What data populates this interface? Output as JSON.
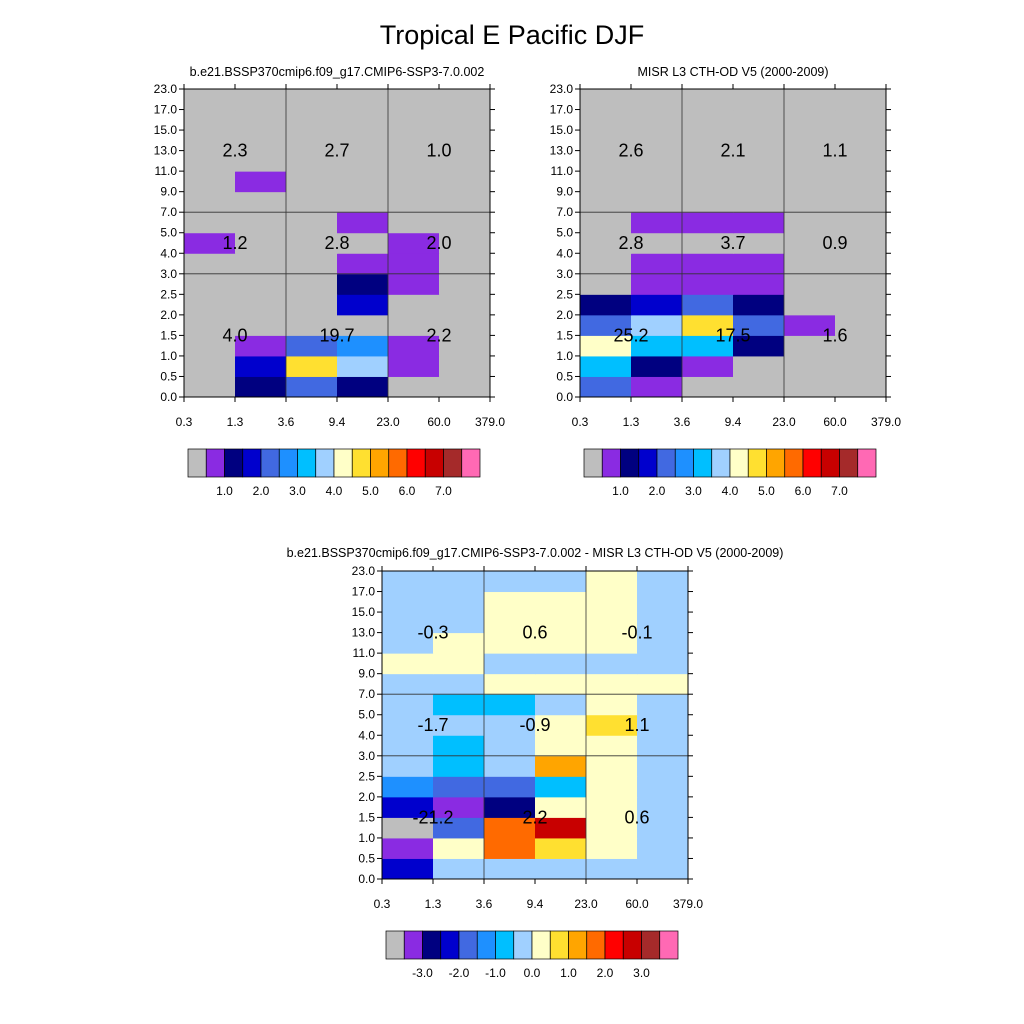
{
  "figure_title": "Tropical E Pacific DJF",
  "colors": {
    "gray": "#bebebe",
    "c1": "#8a2be2",
    "c2": "#000080",
    "c3": "#0000cd",
    "c4": "#4169e1",
    "c5": "#1e90ff",
    "c6": "#00bfff",
    "c7": "#a0d0ff",
    "c8": "#ffffc8",
    "c9": "#ffe030",
    "c10": "#ffa500",
    "c11": "#ff6a00",
    "c12": "#ff0000",
    "c13": "#c80000",
    "c14": "#a52a2a",
    "c15": "#ff69b4"
  },
  "palette_keys": [
    "gray",
    "c1",
    "c2",
    "c3",
    "c4",
    "c5",
    "c6",
    "c7",
    "c8",
    "c9",
    "c10",
    "c11",
    "c12",
    "c13",
    "c14",
    "c15"
  ],
  "chart_data": [
    {
      "type": "heatmap",
      "title": "b.e21.BSSP370cmip6.f09_g17.CMIP6-SSP3-7.0.002",
      "x_ticks": [
        "0.3",
        "1.3",
        "3.6",
        "9.4",
        "23.0",
        "60.0",
        "379.0"
      ],
      "y_ticks": [
        "0.0",
        "0.5",
        "1.0",
        "1.5",
        "2.0",
        "2.5",
        "3.0",
        "4.0",
        "5.0",
        "7.0",
        "9.0",
        "11.0",
        "13.0",
        "15.0",
        "17.0",
        "23.0"
      ],
      "cells": [
        [
          "gray",
          "c2",
          "c4",
          "c2",
          "gray",
          "gray"
        ],
        [
          "gray",
          "c3",
          "c9",
          "c7",
          "c1",
          "gray"
        ],
        [
          "gray",
          "c1",
          "c4",
          "c5",
          "c1",
          "gray"
        ],
        [
          "gray",
          "gray",
          "gray",
          "gray",
          "gray",
          "gray"
        ],
        [
          "gray",
          "gray",
          "gray",
          "c3",
          "gray",
          "gray"
        ],
        [
          "gray",
          "gray",
          "gray",
          "c2",
          "c1",
          "gray"
        ],
        [
          "gray",
          "gray",
          "gray",
          "c1",
          "c1",
          "gray"
        ],
        [
          "c1",
          "gray",
          "gray",
          "gray",
          "c1",
          "gray"
        ],
        [
          "gray",
          "gray",
          "gray",
          "c1",
          "gray",
          "gray"
        ],
        [
          "gray",
          "gray",
          "gray",
          "gray",
          "gray",
          "gray"
        ],
        [
          "gray",
          "c1",
          "gray",
          "gray",
          "gray",
          "gray"
        ],
        [
          "gray",
          "gray",
          "gray",
          "gray",
          "gray",
          "gray"
        ],
        [
          "gray",
          "gray",
          "gray",
          "gray",
          "gray",
          "gray"
        ],
        [
          "gray",
          "gray",
          "gray",
          "gray",
          "gray",
          "gray"
        ],
        [
          "gray",
          "gray",
          "gray",
          "gray",
          "gray",
          "gray"
        ]
      ],
      "box_labels": [
        {
          "row": "low",
          "col": "left",
          "value": "4.0"
        },
        {
          "row": "low",
          "col": "mid",
          "value": "19.7"
        },
        {
          "row": "low",
          "col": "right",
          "value": "2.2"
        },
        {
          "row": "mid",
          "col": "left",
          "value": "1.2"
        },
        {
          "row": "mid",
          "col": "mid",
          "value": "2.8"
        },
        {
          "row": "mid",
          "col": "right",
          "value": "2.0"
        },
        {
          "row": "high",
          "col": "left",
          "value": "2.3"
        },
        {
          "row": "high",
          "col": "mid",
          "value": "2.7"
        },
        {
          "row": "high",
          "col": "right",
          "value": "1.0"
        }
      ],
      "colorbar_labels": [
        "1.0",
        "2.0",
        "3.0",
        "4.0",
        "5.0",
        "6.0",
        "7.0"
      ]
    },
    {
      "type": "heatmap",
      "title": "MISR L3 CTH-OD V5 (2000-2009)",
      "x_ticks": [
        "0.3",
        "1.3",
        "3.6",
        "9.4",
        "23.0",
        "60.0",
        "379.0"
      ],
      "y_ticks": [
        "0.0",
        "0.5",
        "1.0",
        "1.5",
        "2.0",
        "2.5",
        "3.0",
        "4.0",
        "5.0",
        "7.0",
        "9.0",
        "11.0",
        "13.0",
        "15.0",
        "17.0",
        "23.0"
      ],
      "cells": [
        [
          "c4",
          "c1",
          "gray",
          "gray",
          "gray",
          "gray"
        ],
        [
          "c6",
          "c2",
          "c1",
          "gray",
          "gray",
          "gray"
        ],
        [
          "c8",
          "c6",
          "c6",
          "c2",
          "gray",
          "gray"
        ],
        [
          "c4",
          "c7",
          "c9",
          "c4",
          "c1",
          "gray"
        ],
        [
          "c2",
          "c3",
          "c4",
          "c2",
          "gray",
          "gray"
        ],
        [
          "gray",
          "c1",
          "c1",
          "c1",
          "gray",
          "gray"
        ],
        [
          "gray",
          "c1",
          "c1",
          "c1",
          "gray",
          "gray"
        ],
        [
          "gray",
          "gray",
          "gray",
          "gray",
          "gray",
          "gray"
        ],
        [
          "gray",
          "c1",
          "c1",
          "c1",
          "gray",
          "gray"
        ],
        [
          "gray",
          "gray",
          "gray",
          "gray",
          "gray",
          "gray"
        ],
        [
          "gray",
          "gray",
          "gray",
          "gray",
          "gray",
          "gray"
        ],
        [
          "gray",
          "gray",
          "gray",
          "gray",
          "gray",
          "gray"
        ],
        [
          "gray",
          "gray",
          "gray",
          "gray",
          "gray",
          "gray"
        ],
        [
          "gray",
          "gray",
          "gray",
          "gray",
          "gray",
          "gray"
        ],
        [
          "gray",
          "gray",
          "gray",
          "gray",
          "gray",
          "gray"
        ]
      ],
      "box_labels": [
        {
          "row": "low",
          "col": "left",
          "value": "25.2"
        },
        {
          "row": "low",
          "col": "mid",
          "value": "17.5"
        },
        {
          "row": "low",
          "col": "right",
          "value": "1.6"
        },
        {
          "row": "mid",
          "col": "left",
          "value": "2.8"
        },
        {
          "row": "mid",
          "col": "mid",
          "value": "3.7"
        },
        {
          "row": "mid",
          "col": "right",
          "value": "0.9"
        },
        {
          "row": "high",
          "col": "left",
          "value": "2.6"
        },
        {
          "row": "high",
          "col": "mid",
          "value": "2.1"
        },
        {
          "row": "high",
          "col": "right",
          "value": "1.1"
        }
      ],
      "colorbar_labels": [
        "1.0",
        "2.0",
        "3.0",
        "4.0",
        "5.0",
        "6.0",
        "7.0"
      ]
    },
    {
      "type": "heatmap",
      "title": "b.e21.BSSP370cmip6.f09_g17.CMIP6-SSP3-7.0.002 - MISR L3 CTH-OD V5 (2000-2009)",
      "x_ticks": [
        "0.3",
        "1.3",
        "3.6",
        "9.4",
        "23.0",
        "60.0",
        "379.0"
      ],
      "y_ticks": [
        "0.0",
        "0.5",
        "1.0",
        "1.5",
        "2.0",
        "2.5",
        "3.0",
        "4.0",
        "5.0",
        "7.0",
        "9.0",
        "11.0",
        "13.0",
        "15.0",
        "17.0",
        "23.0"
      ],
      "cells": [
        [
          "c3",
          "c7",
          "c7",
          "c7",
          "c7",
          "c7"
        ],
        [
          "c1",
          "c8",
          "c11",
          "c9",
          "c8",
          "c7"
        ],
        [
          "gray",
          "c4",
          "c11",
          "c13",
          "c8",
          "c7"
        ],
        [
          "c3",
          "c1",
          "c2",
          "c8",
          "c8",
          "c7"
        ],
        [
          "c5",
          "c4",
          "c4",
          "c6",
          "c8",
          "c7"
        ],
        [
          "c7",
          "c6",
          "c7",
          "c10",
          "c8",
          "c7"
        ],
        [
          "c7",
          "c6",
          "c7",
          "c8",
          "c8",
          "c7"
        ],
        [
          "c7",
          "c7",
          "c7",
          "c8",
          "c9",
          "c7"
        ],
        [
          "c7",
          "c6",
          "c6",
          "c7",
          "c8",
          "c7"
        ],
        [
          "c7",
          "c7",
          "c8",
          "c8",
          "c8",
          "c8"
        ],
        [
          "c8",
          "c8",
          "c7",
          "c7",
          "c7",
          "c7"
        ],
        [
          "c7",
          "c8",
          "c8",
          "c8",
          "c8",
          "c7"
        ],
        [
          "c7",
          "c7",
          "c8",
          "c8",
          "c8",
          "c7"
        ],
        [
          "c7",
          "c7",
          "c8",
          "c8",
          "c8",
          "c7"
        ],
        [
          "c7",
          "c7",
          "c7",
          "c7",
          "c8",
          "c7"
        ]
      ],
      "box_labels": [
        {
          "row": "low",
          "col": "left",
          "value": "-21.2"
        },
        {
          "row": "low",
          "col": "mid",
          "value": "2.2"
        },
        {
          "row": "low",
          "col": "right",
          "value": "0.6"
        },
        {
          "row": "mid",
          "col": "left",
          "value": "-1.7"
        },
        {
          "row": "mid",
          "col": "mid",
          "value": "-0.9"
        },
        {
          "row": "mid",
          "col": "right",
          "value": "1.1"
        },
        {
          "row": "high",
          "col": "left",
          "value": "-0.3"
        },
        {
          "row": "high",
          "col": "mid",
          "value": "0.6"
        },
        {
          "row": "high",
          "col": "right",
          "value": "-0.1"
        }
      ],
      "colorbar_labels": [
        "-3.0",
        "-2.0",
        "-1.0",
        "0.0",
        "1.0",
        "2.0",
        "3.0"
      ]
    }
  ]
}
